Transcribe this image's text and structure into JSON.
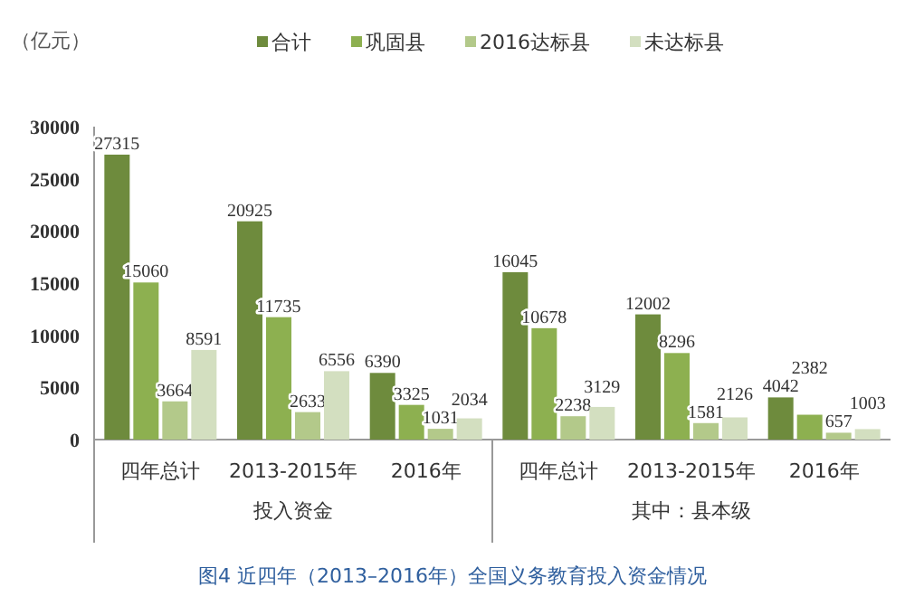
{
  "chart_data": {
    "type": "bar",
    "title": "图4 近四年（2013–2016年）全国义务教育投入资金情况",
    "ylabel": "（亿元）",
    "categories": [
      "四年总计",
      "2013-2015年",
      "2016年",
      "四年总计",
      "2013-2015年",
      "2016年"
    ],
    "series": [
      {
        "name": "合计",
        "color": "#6e8b3d",
        "values": [
          27315,
          20925,
          6390,
          16045,
          12002,
          4042
        ]
      },
      {
        "name": "巩固县",
        "color": "#8db050",
        "values": [
          15060,
          11735,
          3325,
          10678,
          8296,
          2382
        ]
      },
      {
        "name": "2016达标县",
        "color": "#b3c98a",
        "values": [
          3664,
          2633,
          1031,
          2238,
          1581,
          657
        ]
      },
      {
        "name": "未达标县",
        "color": "#d3dfc0",
        "values": [
          8591,
          6556,
          2034,
          3129,
          2126,
          1003
        ]
      }
    ],
    "annotations": [
      "投入资金",
      "其中：县本级"
    ],
    "ylim": [
      0,
      30000
    ],
    "yticks": [
      0,
      5000,
      10000,
      15000,
      20000,
      25000,
      30000
    ],
    "data_labels": true,
    "legend": "top",
    "grid": false
  }
}
